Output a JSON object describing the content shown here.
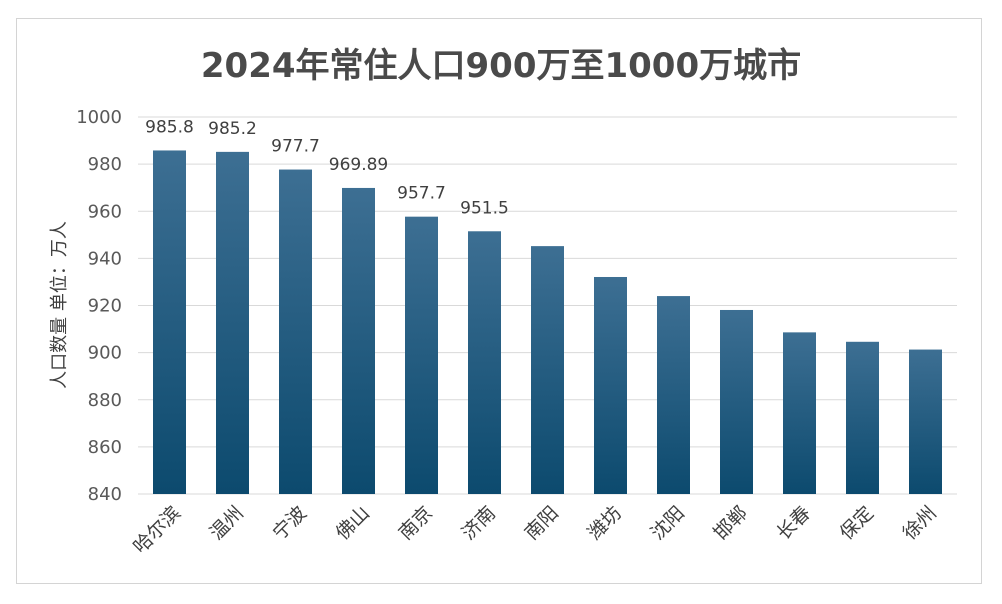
{
  "chart_data": {
    "type": "bar",
    "title": "2024年常住人口900万至1000万城市",
    "ylabel": "人口数量 单位：万人",
    "xlabel": "",
    "ylim": [
      840,
      1000
    ],
    "yticks": [
      840,
      860,
      880,
      900,
      920,
      940,
      960,
      980,
      1000
    ],
    "yticks_text": [
      "840",
      "860",
      "880",
      "900",
      "920",
      "940",
      "960",
      "980",
      "1000"
    ],
    "grid": true,
    "categories": [
      "哈尔滨",
      "温州",
      "宁波",
      "佛山",
      "南京",
      "济南",
      "南阳",
      "潍坊",
      "沈阳",
      "邯郸",
      "长春",
      "保定",
      "徐州"
    ],
    "values": [
      985.8,
      985.2,
      977.7,
      969.89,
      957.7,
      951.5,
      945.2,
      932.1,
      924.0,
      918.1,
      908.6,
      904.6,
      901.3
    ],
    "data_labels": [
      "985.8",
      "985.2",
      "977.7",
      "969.89",
      "957.7",
      "951.5",
      "",
      "",
      "",
      "",
      "",
      "",
      ""
    ],
    "bar_color_top": "#3d6f93",
    "bar_color_bottom": "#0c4a6e",
    "grid_color": "#d9d9d9"
  }
}
